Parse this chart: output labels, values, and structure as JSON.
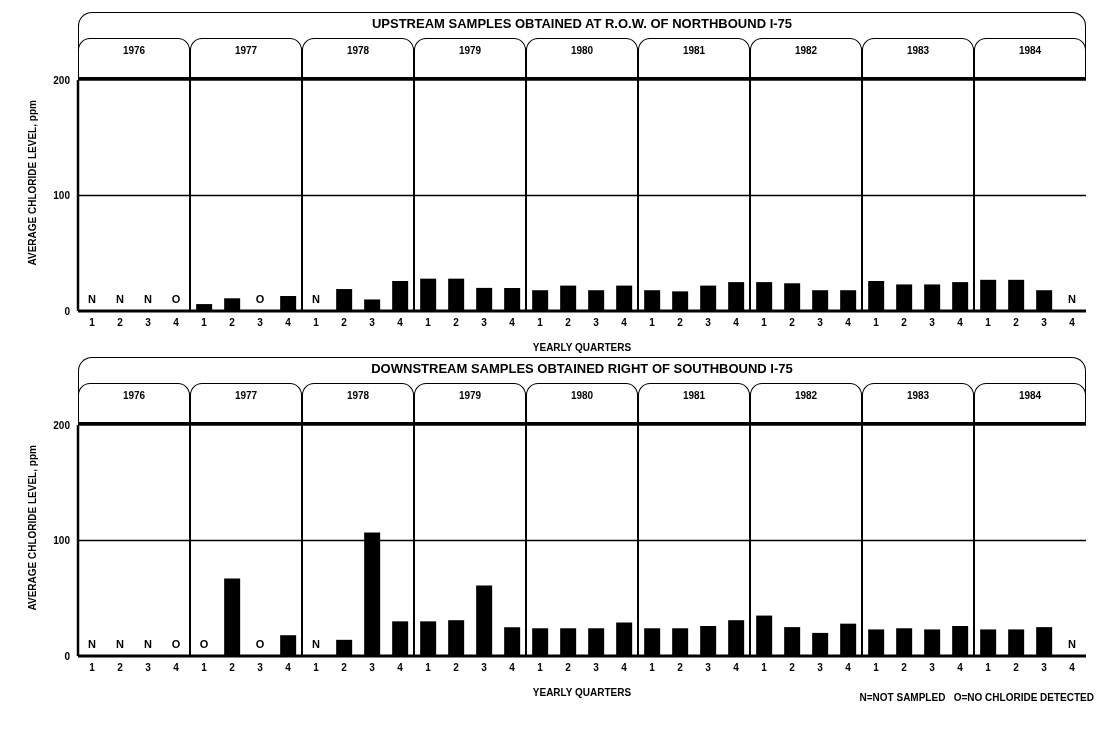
{
  "chart_data": [
    {
      "type": "bar",
      "title": "UPSTREAM SAMPLES OBTAINED AT R.O.W. OF NORTHBOUND I-75",
      "ylabel": "AVERAGE CHLORIDE LEVEL, ppm",
      "xlabel": "YEARLY QUARTERS",
      "categories": [
        "1",
        "2",
        "3",
        "4",
        "1",
        "2",
        "3",
        "4",
        "1",
        "2",
        "3",
        "4",
        "1",
        "2",
        "3",
        "4",
        "1",
        "2",
        "3",
        "4",
        "1",
        "2",
        "3",
        "4",
        "1",
        "2",
        "3",
        "4",
        "1",
        "2",
        "3",
        "4",
        "1",
        "2",
        "3",
        "4"
      ],
      "values": [
        null,
        null,
        null,
        0,
        6,
        11,
        0,
        13,
        null,
        19,
        10,
        26,
        28,
        28,
        20,
        20,
        18,
        22,
        18,
        22,
        18,
        17,
        22,
        25,
        25,
        24,
        18,
        18,
        26,
        23,
        23,
        25,
        27,
        27,
        18,
        null
      ],
      "value_labels": [
        "N",
        "N",
        "N",
        "O",
        null,
        null,
        "O",
        null,
        "N",
        null,
        null,
        null,
        null,
        null,
        null,
        null,
        null,
        null,
        null,
        null,
        null,
        null,
        null,
        null,
        null,
        null,
        null,
        null,
        null,
        null,
        null,
        null,
        null,
        null,
        null,
        "N"
      ],
      "color": "#000000",
      "ylim": [
        0,
        200
      ],
      "yticks": [
        0,
        100,
        200
      ],
      "grid": "y",
      "annotations": [
        "1976",
        "1977",
        "1978",
        "1979",
        "1980",
        "1981",
        "1982",
        "1983",
        "1984"
      ]
    },
    {
      "type": "bar",
      "title": "DOWNSTREAM SAMPLES OBTAINED RIGHT OF SOUTHBOUND I-75",
      "ylabel": "AVERAGE CHLORIDE LEVEL, ppm",
      "xlabel": "YEARLY QUARTERS",
      "categories": [
        "1",
        "2",
        "3",
        "4",
        "1",
        "2",
        "3",
        "4",
        "1",
        "2",
        "3",
        "4",
        "1",
        "2",
        "3",
        "4",
        "1",
        "2",
        "3",
        "4",
        "1",
        "2",
        "3",
        "4",
        "1",
        "2",
        "3",
        "4",
        "1",
        "2",
        "3",
        "4",
        "1",
        "2",
        "3",
        "4"
      ],
      "values": [
        null,
        null,
        null,
        0,
        0,
        67,
        0,
        18,
        null,
        14,
        107,
        30,
        30,
        31,
        61,
        25,
        24,
        24,
        24,
        29,
        24,
        24,
        26,
        31,
        35,
        25,
        20,
        28,
        23,
        24,
        23,
        26,
        23,
        23,
        25,
        null
      ],
      "value_labels": [
        "N",
        "N",
        "N",
        "O",
        "O",
        null,
        "O",
        null,
        "N",
        null,
        null,
        null,
        null,
        null,
        null,
        null,
        null,
        null,
        null,
        null,
        null,
        null,
        null,
        null,
        null,
        null,
        null,
        null,
        null,
        null,
        null,
        null,
        null,
        null,
        null,
        "N"
      ],
      "color": "#000000",
      "ylim": [
        0,
        200
      ],
      "yticks": [
        0,
        100,
        200
      ],
      "grid": "y",
      "annotations": [
        "1976",
        "1977",
        "1978",
        "1979",
        "1980",
        "1981",
        "1982",
        "1983",
        "1984",
        "N=NOT SAMPLED   O=NO CHLORIDE DETECTED"
      ]
    }
  ]
}
